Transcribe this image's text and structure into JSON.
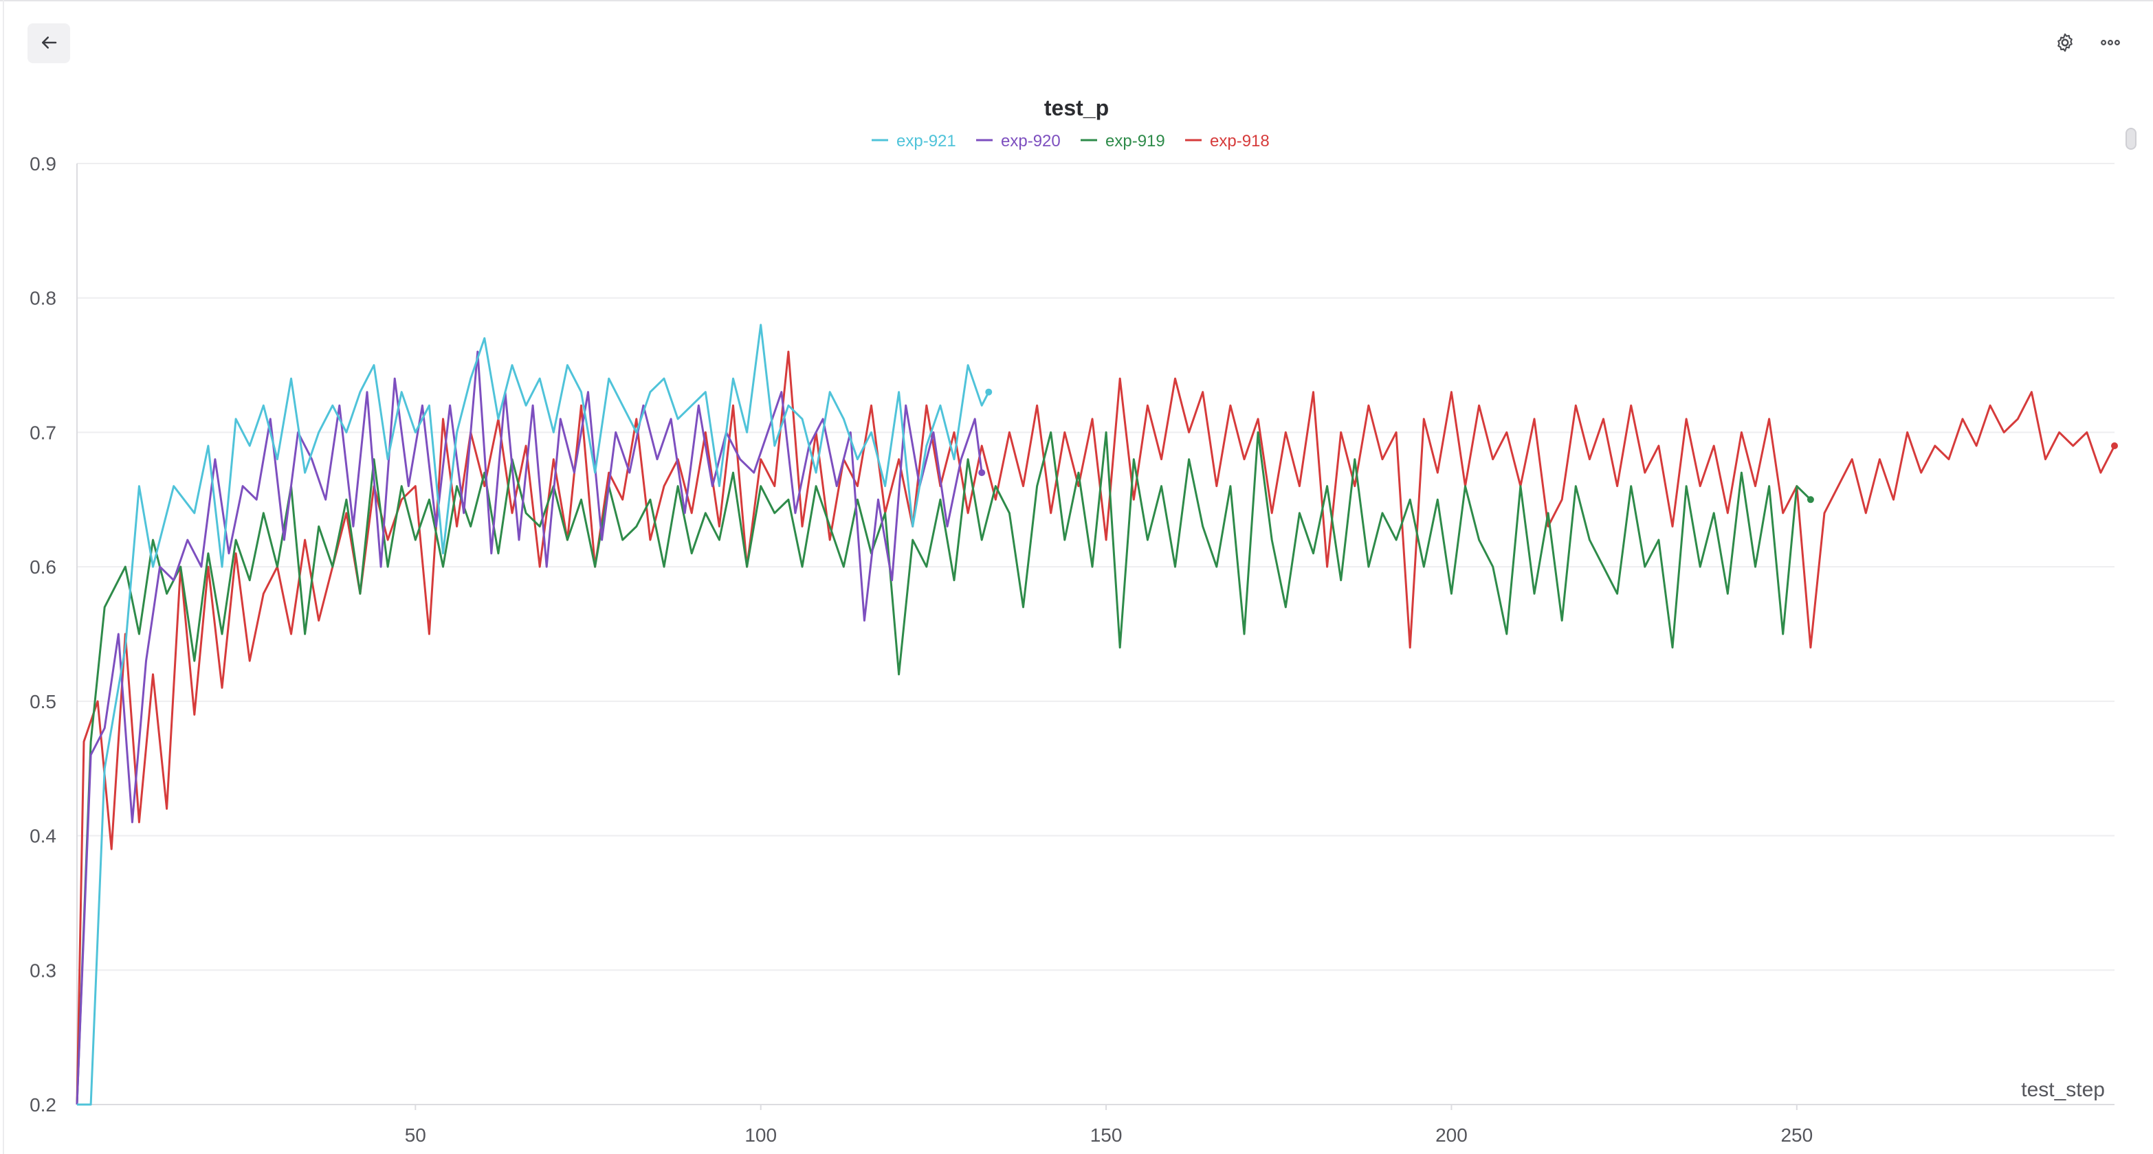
{
  "toolbar": {
    "back_icon": "arrow-left-icon",
    "settings_icon": "gear-icon",
    "more_icon": "more-horizontal-icon"
  },
  "chart_data": {
    "type": "line",
    "title": "test_p",
    "xlabel": "test_step",
    "ylabel": "",
    "xlim": [
      1,
      296
    ],
    "ylim": [
      0.2,
      0.9
    ],
    "x_ticks": [
      "50",
      "100",
      "150",
      "200",
      "250"
    ],
    "y_ticks": [
      "0.2",
      "0.3",
      "0.4",
      "0.5",
      "0.6",
      "0.7",
      "0.8",
      "0.9"
    ],
    "grid": true,
    "legend_position": "top-center",
    "series": [
      {
        "name": "exp-921",
        "color": "#4fc3d9",
        "x": [
          1,
          3,
          5,
          8,
          10,
          12,
          15,
          18,
          20,
          22,
          24,
          26,
          28,
          30,
          32,
          34,
          36,
          38,
          40,
          42,
          44,
          46,
          48,
          50,
          52,
          54,
          56,
          58,
          60,
          62,
          64,
          66,
          68,
          70,
          72,
          74,
          76,
          78,
          80,
          82,
          84,
          86,
          88,
          90,
          92,
          94,
          96,
          98,
          100,
          102,
          104,
          106,
          108,
          110,
          112,
          114,
          116,
          118,
          120,
          122,
          124,
          126,
          128,
          130,
          132,
          133
        ],
        "values": [
          0.2,
          0.2,
          0.45,
          0.54,
          0.66,
          0.6,
          0.66,
          0.64,
          0.69,
          0.6,
          0.71,
          0.69,
          0.72,
          0.68,
          0.74,
          0.67,
          0.7,
          0.72,
          0.7,
          0.73,
          0.75,
          0.68,
          0.73,
          0.7,
          0.72,
          0.61,
          0.7,
          0.74,
          0.77,
          0.71,
          0.75,
          0.72,
          0.74,
          0.7,
          0.75,
          0.73,
          0.67,
          0.74,
          0.72,
          0.7,
          0.73,
          0.74,
          0.71,
          0.72,
          0.73,
          0.66,
          0.74,
          0.7,
          0.78,
          0.69,
          0.72,
          0.71,
          0.67,
          0.73,
          0.71,
          0.68,
          0.7,
          0.66,
          0.73,
          0.63,
          0.69,
          0.72,
          0.68,
          0.75,
          0.72,
          0.73
        ]
      },
      {
        "name": "exp-920",
        "color": "#7d4fbf",
        "x": [
          1,
          3,
          5,
          7,
          9,
          11,
          13,
          15,
          17,
          19,
          21,
          23,
          25,
          27,
          29,
          31,
          33,
          35,
          37,
          39,
          41,
          43,
          45,
          47,
          49,
          51,
          53,
          55,
          57,
          59,
          61,
          63,
          65,
          67,
          69,
          71,
          73,
          75,
          77,
          79,
          81,
          83,
          85,
          87,
          89,
          91,
          93,
          95,
          97,
          99,
          101,
          103,
          105,
          107,
          109,
          111,
          113,
          115,
          117,
          119,
          121,
          123,
          125,
          127,
          129,
          131,
          132
        ],
        "values": [
          0.2,
          0.46,
          0.48,
          0.55,
          0.41,
          0.53,
          0.6,
          0.59,
          0.62,
          0.6,
          0.68,
          0.61,
          0.66,
          0.65,
          0.71,
          0.62,
          0.7,
          0.68,
          0.65,
          0.72,
          0.63,
          0.73,
          0.6,
          0.74,
          0.66,
          0.72,
          0.63,
          0.72,
          0.64,
          0.76,
          0.61,
          0.73,
          0.62,
          0.72,
          0.6,
          0.71,
          0.67,
          0.73,
          0.62,
          0.7,
          0.67,
          0.72,
          0.68,
          0.71,
          0.64,
          0.72,
          0.66,
          0.7,
          0.68,
          0.67,
          0.7,
          0.73,
          0.64,
          0.69,
          0.71,
          0.66,
          0.7,
          0.56,
          0.65,
          0.59,
          0.72,
          0.66,
          0.7,
          0.63,
          0.68,
          0.71,
          0.67
        ]
      },
      {
        "name": "exp-919",
        "color": "#2e8b4a",
        "x": [
          1,
          3,
          5,
          8,
          10,
          12,
          14,
          16,
          18,
          20,
          22,
          24,
          26,
          28,
          30,
          32,
          34,
          36,
          38,
          40,
          42,
          44,
          46,
          48,
          50,
          52,
          54,
          56,
          58,
          60,
          62,
          64,
          66,
          68,
          70,
          72,
          74,
          76,
          78,
          80,
          82,
          84,
          86,
          88,
          90,
          92,
          94,
          96,
          98,
          100,
          102,
          104,
          106,
          108,
          110,
          112,
          114,
          116,
          118,
          120,
          122,
          124,
          126,
          128,
          130,
          132,
          134,
          136,
          138,
          140,
          142,
          144,
          146,
          148,
          150,
          152,
          154,
          156,
          158,
          160,
          162,
          164,
          166,
          168,
          170,
          172,
          174,
          176,
          178,
          180,
          182,
          184,
          186,
          188,
          190,
          192,
          194,
          196,
          198,
          200,
          202,
          204,
          206,
          208,
          210,
          212,
          214,
          216,
          218,
          220,
          222,
          224,
          226,
          228,
          230,
          232,
          234,
          236,
          238,
          240,
          242,
          244,
          246,
          248,
          250,
          252
        ],
        "values": [
          0.2,
          0.47,
          0.57,
          0.6,
          0.55,
          0.62,
          0.58,
          0.6,
          0.53,
          0.61,
          0.55,
          0.62,
          0.59,
          0.64,
          0.6,
          0.66,
          0.55,
          0.63,
          0.6,
          0.65,
          0.58,
          0.68,
          0.6,
          0.66,
          0.62,
          0.65,
          0.6,
          0.66,
          0.63,
          0.67,
          0.61,
          0.68,
          0.64,
          0.63,
          0.66,
          0.62,
          0.65,
          0.6,
          0.66,
          0.62,
          0.63,
          0.65,
          0.6,
          0.66,
          0.61,
          0.64,
          0.62,
          0.67,
          0.6,
          0.66,
          0.64,
          0.65,
          0.6,
          0.66,
          0.63,
          0.6,
          0.65,
          0.61,
          0.64,
          0.52,
          0.62,
          0.6,
          0.65,
          0.59,
          0.68,
          0.62,
          0.66,
          0.64,
          0.57,
          0.66,
          0.7,
          0.62,
          0.67,
          0.6,
          0.7,
          0.54,
          0.68,
          0.62,
          0.66,
          0.6,
          0.68,
          0.63,
          0.6,
          0.66,
          0.55,
          0.7,
          0.62,
          0.57,
          0.64,
          0.61,
          0.66,
          0.59,
          0.68,
          0.6,
          0.64,
          0.62,
          0.65,
          0.6,
          0.65,
          0.58,
          0.66,
          0.62,
          0.6,
          0.55,
          0.66,
          0.58,
          0.64,
          0.56,
          0.66,
          0.62,
          0.6,
          0.58,
          0.66,
          0.6,
          0.62,
          0.54,
          0.66,
          0.6,
          0.64,
          0.58,
          0.67,
          0.6,
          0.66,
          0.55,
          0.66,
          0.65
        ]
      },
      {
        "name": "exp-918",
        "color": "#d63b3b",
        "x": [
          1,
          2,
          4,
          6,
          8,
          10,
          12,
          14,
          16,
          18,
          20,
          22,
          24,
          26,
          28,
          30,
          32,
          34,
          36,
          38,
          40,
          42,
          44,
          46,
          48,
          50,
          52,
          54,
          56,
          58,
          60,
          62,
          64,
          66,
          68,
          70,
          72,
          74,
          76,
          78,
          80,
          82,
          84,
          86,
          88,
          90,
          92,
          94,
          96,
          98,
          100,
          102,
          104,
          106,
          108,
          110,
          112,
          114,
          116,
          118,
          120,
          122,
          124,
          126,
          128,
          130,
          132,
          134,
          136,
          138,
          140,
          142,
          144,
          146,
          148,
          150,
          152,
          154,
          156,
          158,
          160,
          162,
          164,
          166,
          168,
          170,
          172,
          174,
          176,
          178,
          180,
          182,
          184,
          186,
          188,
          190,
          192,
          194,
          196,
          198,
          200,
          202,
          204,
          206,
          208,
          210,
          212,
          214,
          216,
          218,
          220,
          222,
          224,
          226,
          228,
          230,
          232,
          234,
          236,
          238,
          240,
          242,
          244,
          246,
          248,
          250,
          252,
          254,
          256,
          258,
          260,
          262,
          264,
          266,
          268,
          270,
          272,
          274,
          276,
          278,
          280,
          282,
          284,
          286,
          288,
          290,
          292,
          294,
          296
        ],
        "values": [
          0.2,
          0.47,
          0.5,
          0.39,
          0.55,
          0.41,
          0.52,
          0.42,
          0.6,
          0.49,
          0.6,
          0.51,
          0.61,
          0.53,
          0.58,
          0.6,
          0.55,
          0.62,
          0.56,
          0.6,
          0.64,
          0.58,
          0.66,
          0.62,
          0.65,
          0.66,
          0.55,
          0.71,
          0.63,
          0.7,
          0.66,
          0.71,
          0.64,
          0.69,
          0.6,
          0.68,
          0.62,
          0.72,
          0.6,
          0.67,
          0.65,
          0.71,
          0.62,
          0.66,
          0.68,
          0.64,
          0.7,
          0.63,
          0.72,
          0.6,
          0.68,
          0.66,
          0.76,
          0.63,
          0.7,
          0.62,
          0.68,
          0.66,
          0.72,
          0.64,
          0.68,
          0.63,
          0.72,
          0.66,
          0.7,
          0.64,
          0.69,
          0.65,
          0.7,
          0.66,
          0.72,
          0.64,
          0.7,
          0.66,
          0.71,
          0.62,
          0.74,
          0.65,
          0.72,
          0.68,
          0.74,
          0.7,
          0.73,
          0.66,
          0.72,
          0.68,
          0.71,
          0.64,
          0.7,
          0.66,
          0.73,
          0.6,
          0.7,
          0.66,
          0.72,
          0.68,
          0.7,
          0.54,
          0.71,
          0.67,
          0.73,
          0.66,
          0.72,
          0.68,
          0.7,
          0.66,
          0.71,
          0.63,
          0.65,
          0.72,
          0.68,
          0.71,
          0.66,
          0.72,
          0.67,
          0.69,
          0.63,
          0.71,
          0.66,
          0.69,
          0.64,
          0.7,
          0.66,
          0.71,
          0.64,
          0.66,
          0.54,
          0.64,
          0.66,
          0.68,
          0.64,
          0.68,
          0.65,
          0.7,
          0.67,
          0.69,
          0.68,
          0.71,
          0.69,
          0.72,
          0.7,
          0.71,
          0.73,
          0.68,
          0.7,
          0.69,
          0.7,
          0.67,
          0.69
        ]
      }
    ]
  }
}
